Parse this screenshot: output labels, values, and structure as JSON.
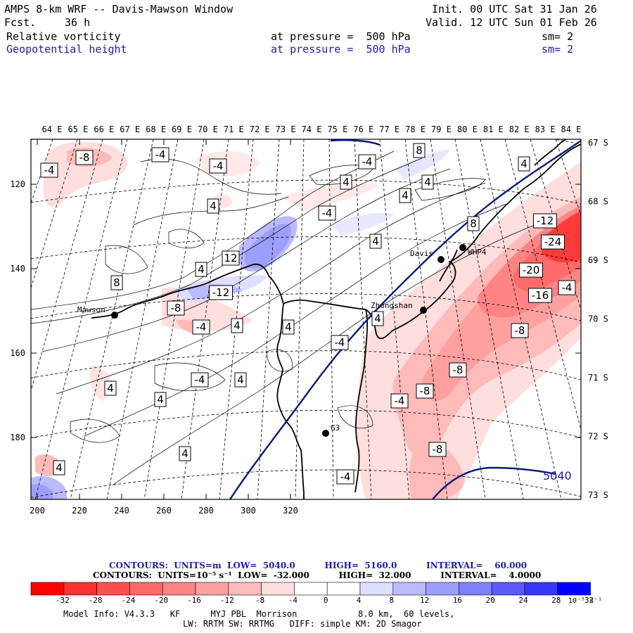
{
  "header": {
    "title": "AMPS 8-km WRF -- Davis-Mawson Window",
    "init": "Init. 00 UTC Sat 31 Jan 26",
    "fcst_label": "Fcst.",
    "fcst_value": "36 h",
    "valid": "Valid. 12 UTC Sun 01 Feb 26",
    "field1": {
      "name": "Relative vorticity",
      "pressure": "at pressure =  500 hPa",
      "sm": "sm= 2"
    },
    "field2": {
      "name": "Geopotential height",
      "pressure": "at pressure =  500 hPa",
      "sm": "sm= 2"
    }
  },
  "map": {
    "lon_labels": [
      "64 E",
      "65 E",
      "66 E",
      "67 E",
      "68 E",
      "69 E",
      "70 E",
      "71 E",
      "72 E",
      "73 E",
      "74 E",
      "75 E",
      "76 E",
      "77 E",
      "78 E",
      "79 E",
      "80 E",
      "81 E",
      "82 E",
      "83 E",
      "84 E"
    ],
    "lat_labels": [
      "67 S",
      "68 S",
      "69 S",
      "70 S",
      "71 S",
      "72 S",
      "73 S"
    ],
    "x_ticks": [
      "200",
      "220",
      "240",
      "260",
      "280",
      "300",
      "320"
    ],
    "y_ticks": [
      "120",
      "140",
      "160",
      "180"
    ],
    "stations": [
      {
        "name": "Mawson"
      },
      {
        "name": "Davis"
      },
      {
        "name": "WHP4"
      },
      {
        "name": "Zhongshan"
      },
      {
        "name": "G3"
      }
    ],
    "height_label": "5040",
    "vort_labels": [
      "-8",
      "-4",
      "-4",
      "-4",
      "-4",
      "8",
      "4",
      "4",
      "4",
      "4",
      "4",
      "-4",
      "8",
      "4",
      "-12",
      "-24",
      "-20",
      "-16",
      "-4",
      "-8",
      "12",
      "4",
      "-12",
      "8",
      "-8",
      "-4",
      "4",
      "4",
      "-4",
      "4",
      "4",
      "4",
      "-4",
      "4",
      "-8",
      "-8",
      "-4",
      "-8",
      "4",
      "4",
      "-4"
    ]
  },
  "colorbar": {
    "labels": [
      "-32",
      "-28",
      "-24",
      "-20",
      "-16",
      "-12",
      "-8",
      "-4",
      "0",
      "4",
      "8",
      "12",
      "16",
      "20",
      "24",
      "28",
      "32"
    ],
    "units": "10⁻⁵ s⁻¹",
    "colors": [
      "#ff0000",
      "#ff3030",
      "#ff5050",
      "#ff6a6a",
      "#ff8484",
      "#ffa0a0",
      "#ffbaba",
      "#ffdede",
      "#ffffff",
      "#ffffff",
      "#dedeff",
      "#babaff",
      "#9e9eff",
      "#8080ff",
      "#5a5aff",
      "#3636ff",
      "#0000ff"
    ]
  },
  "summary": {
    "line1": "CONTOURS:  UNITS=m  LOW=  5040.0          HIGH=  5160.0          INTERVAL=    60.000",
    "line2": "CONTOURS:  UNITS=10⁻⁵ s⁻¹  LOW=  -32.000          HIGH=  32.000          INTERVAL=    4.0000"
  },
  "model_info": {
    "line1": "Model Info: V4.3.3   KF      MYJ PBL  Morrison            8.0 km,  60 levels,",
    "line2": "LW: RRTM SW: RRTMG   DIFF: simple KM: 2D Smagor"
  }
}
